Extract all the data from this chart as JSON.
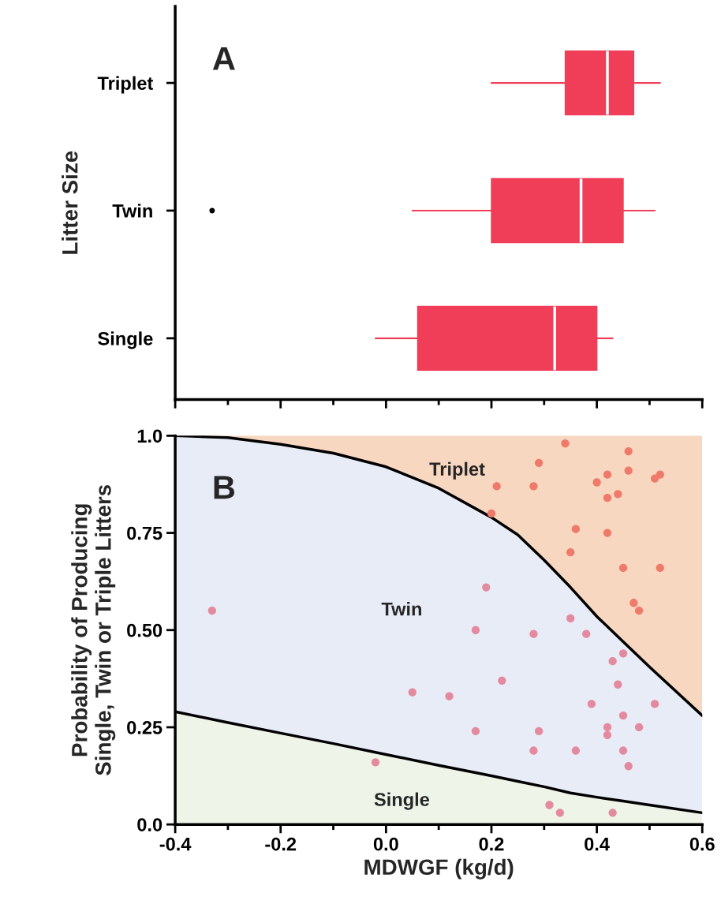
{
  "chart_data": [
    {
      "type": "box",
      "orientation": "horizontal",
      "ylabel": "Litter Size",
      "categories": [
        "Triplet",
        "Twin",
        "Single"
      ],
      "color": "#f03e58",
      "boxes": [
        {
          "low": 0.2,
          "q1": 0.34,
          "median": 0.42,
          "q3": 0.47,
          "high": 0.52
        },
        {
          "low": 0.05,
          "q1": 0.2,
          "median": 0.37,
          "q3": 0.45,
          "high": 0.51,
          "outliers": [
            -0.33
          ]
        },
        {
          "low": -0.02,
          "q1": 0.06,
          "median": 0.32,
          "q3": 0.4,
          "high": 0.43
        }
      ],
      "xlim": [
        -0.4,
        0.6
      ],
      "xticks": [
        {
          "value": -0.4,
          "label": null
        },
        {
          "value": -0.3,
          "label": null
        },
        {
          "value": -0.2,
          "label": null
        },
        {
          "value": -0.1,
          "label": null
        },
        {
          "value": 0.0,
          "label": null
        },
        {
          "value": 0.1,
          "label": null
        },
        {
          "value": 0.2,
          "label": null
        },
        {
          "value": 0.3,
          "label": null
        },
        {
          "value": 0.4,
          "label": null
        },
        {
          "value": 0.5,
          "label": null
        },
        {
          "value": 0.6,
          "label": null
        }
      ],
      "tick_labels": "y",
      "annotations": [
        "A"
      ]
    },
    {
      "type": "area",
      "stacked": true,
      "xlabel": "MDWGF (kg/d)",
      "ylabel": "Probability of Producing\nSingle, Twin or Triple Litters",
      "series": [
        {
          "name": "Single",
          "type": "area",
          "color": "#eef4e8",
          "line_style": "solid",
          "x": [
            -0.4,
            -0.3,
            -0.2,
            -0.1,
            0.0,
            0.1,
            0.2,
            0.25,
            0.3,
            0.35,
            0.4,
            0.45,
            0.5,
            0.6
          ],
          "values": [
            0.29,
            0.262,
            0.235,
            0.208,
            0.18,
            0.152,
            0.125,
            0.111,
            0.097,
            0.081,
            0.07,
            0.06,
            0.05,
            0.03
          ]
        },
        {
          "name": "Twin",
          "type": "area",
          "color": "#e8ecf7",
          "line_style": "solid",
          "x": [
            -0.4,
            -0.3,
            -0.2,
            -0.1,
            0.0,
            0.1,
            0.2,
            0.25,
            0.3,
            0.35,
            0.4,
            0.45,
            0.5,
            0.6
          ],
          "values": [
            0.71,
            0.733,
            0.743,
            0.747,
            0.74,
            0.713,
            0.665,
            0.634,
            0.583,
            0.529,
            0.465,
            0.41,
            0.355,
            0.25
          ]
        },
        {
          "name": "Triplet",
          "type": "area",
          "color": "#f8d7c0",
          "x": [
            -0.4,
            -0.3,
            -0.2,
            -0.1,
            0.0,
            0.1,
            0.2,
            0.25,
            0.3,
            0.35,
            0.4,
            0.45,
            0.5,
            0.6
          ],
          "values": [
            0.0,
            0.005,
            0.022,
            0.045,
            0.08,
            0.135,
            0.21,
            0.255,
            0.32,
            0.39,
            0.465,
            0.53,
            0.595,
            0.72
          ]
        },
        {
          "type": "scatter",
          "color": "#ef7a6a",
          "x": [
            0.34,
            0.46,
            0.29,
            0.42,
            0.46,
            0.52,
            0.51,
            0.4,
            0.28,
            0.21,
            0.42,
            0.44,
            0.2,
            0.36,
            0.42,
            0.35,
            0.45,
            0.52,
            0.47,
            0.48
          ],
          "values": [
            0.98,
            0.96,
            0.93,
            0.9,
            0.91,
            0.9,
            0.89,
            0.88,
            0.87,
            0.87,
            0.84,
            0.85,
            0.8,
            0.76,
            0.75,
            0.7,
            0.66,
            0.66,
            0.57,
            0.55
          ]
        },
        {
          "type": "scatter",
          "color": "#e48a9e",
          "x": [
            0.19,
            -0.33,
            0.35,
            0.17,
            0.28,
            0.38,
            0.45,
            0.43,
            0.22,
            0.05,
            0.12,
            0.44,
            0.39,
            0.51,
            0.45,
            0.42,
            0.48,
            0.17,
            0.29,
            0.42,
            0.28,
            0.36,
            0.45,
            0.46,
            -0.02,
            0.31,
            0.33,
            0.43
          ],
          "values": [
            0.61,
            0.55,
            0.53,
            0.5,
            0.49,
            0.49,
            0.44,
            0.42,
            0.37,
            0.34,
            0.33,
            0.36,
            0.31,
            0.31,
            0.28,
            0.25,
            0.25,
            0.24,
            0.24,
            0.23,
            0.19,
            0.19,
            0.19,
            0.15,
            0.16,
            0.05,
            0.03,
            0.03
          ]
        }
      ],
      "xlim": [
        -0.4,
        0.6
      ],
      "ylim": [
        0.0,
        1.0
      ],
      "xticks": [
        -0.4,
        {
          "value": -0.3,
          "label": null
        },
        -0.2,
        {
          "value": -0.1,
          "label": null
        },
        {
          "value": 0.0,
          "label": "0.0"
        },
        {
          "value": 0.1,
          "label": null
        },
        0.2,
        {
          "value": 0.3,
          "label": null
        },
        0.4,
        {
          "value": 0.5,
          "label": null
        },
        0.6
      ],
      "yticks": [
        {
          "value": 0.0,
          "label": "0.0"
        },
        0.25,
        {
          "value": 0.5,
          "label": "0.50"
        },
        0.75,
        {
          "value": 1.0,
          "label": "1.0"
        }
      ],
      "annotations": [
        "B"
      ]
    }
  ]
}
